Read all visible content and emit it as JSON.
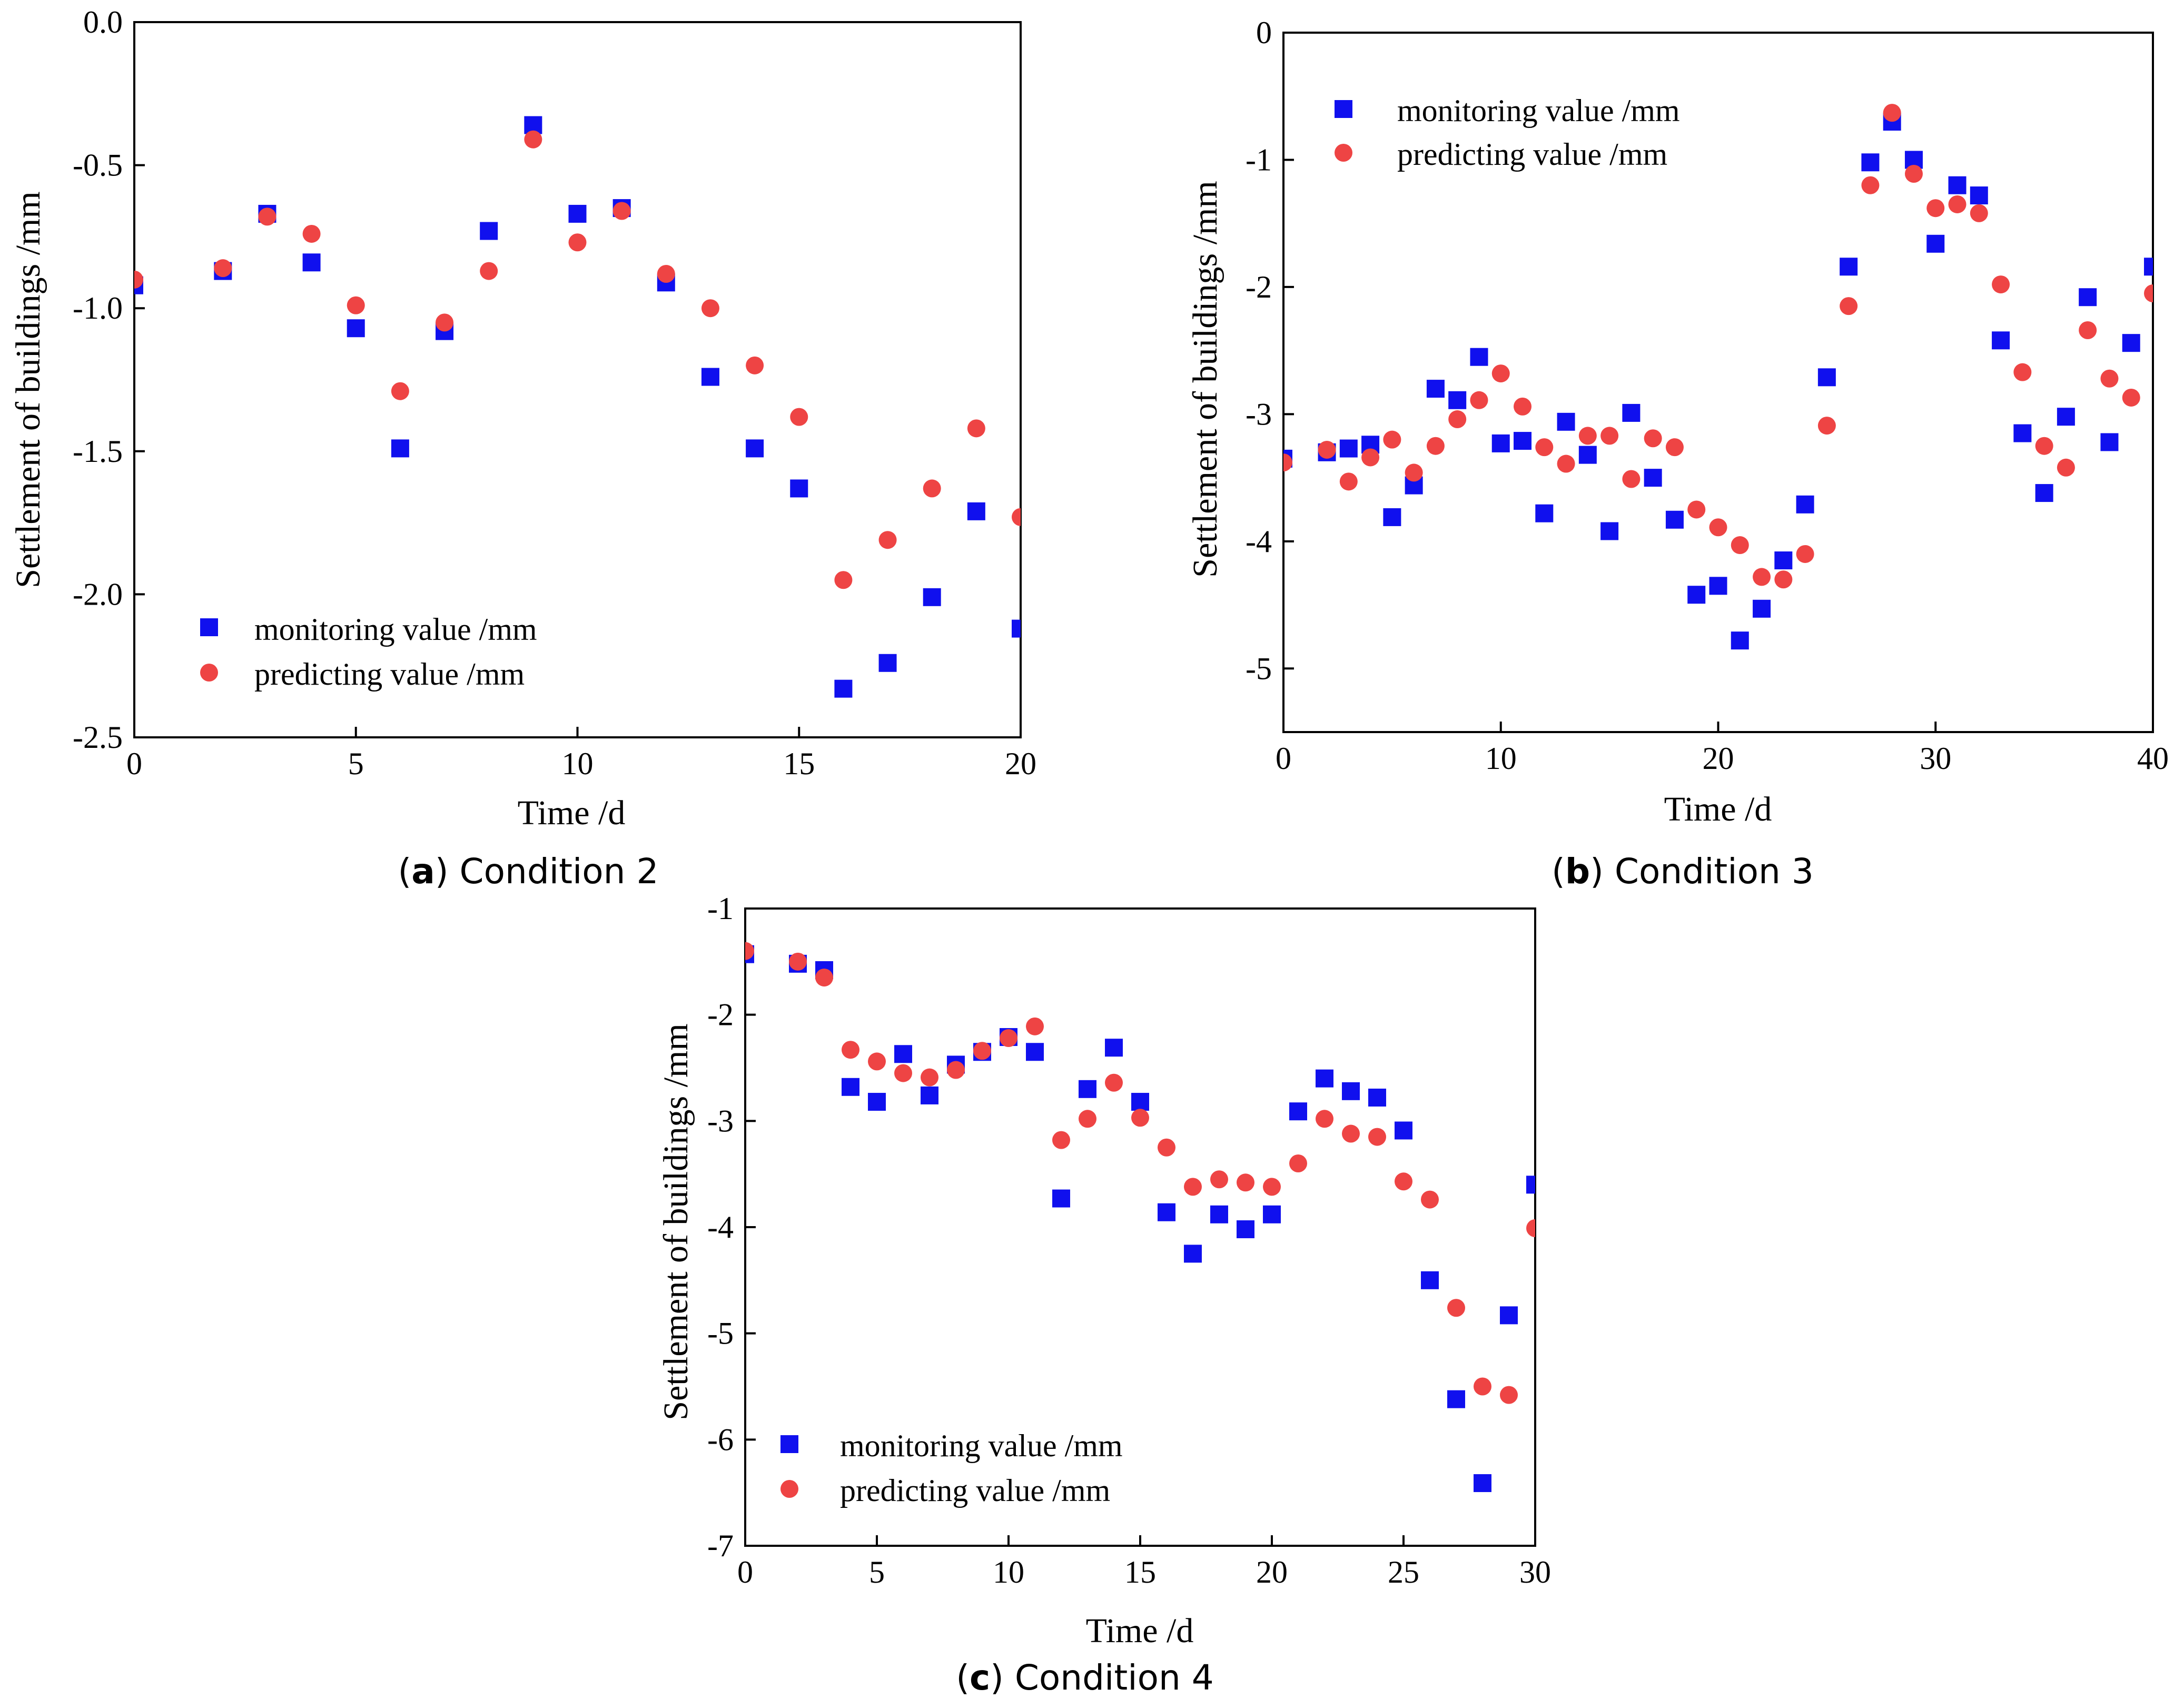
{
  "colors": {
    "monitoring": "#1010ee",
    "predicting": "#ee4444",
    "axis": "#000000"
  },
  "chart_data": [
    {
      "id": "a",
      "type": "scatter",
      "caption_letter": "a",
      "caption_text": "Condition 2",
      "xlabel": "Time /d",
      "ylabel": "Settlement of buildings /mm",
      "xlim": [
        0,
        20
      ],
      "ylim": [
        -2.5,
        0.0
      ],
      "xticks": [
        0,
        5,
        10,
        15,
        20
      ],
      "yticks": [
        0.0,
        -0.5,
        -1.0,
        -1.5,
        -2.0,
        -2.5
      ],
      "xtick_labels": [
        "0",
        "5",
        "10",
        "15",
        "20"
      ],
      "ytick_labels": [
        "0.0",
        "-0.5",
        "-1.0",
        "-1.5",
        "-2.0",
        "-2.5"
      ],
      "legend_position": "bottom-left",
      "series": [
        {
          "name": "monitoring value /mm",
          "marker": "square",
          "x": [
            0,
            2,
            3,
            4,
            5,
            6,
            7,
            8,
            9,
            10,
            11,
            12,
            13,
            14,
            15,
            16,
            17,
            18,
            19,
            20
          ],
          "y": [
            -0.92,
            -0.87,
            -0.67,
            -0.84,
            -1.07,
            -1.49,
            -1.08,
            -0.73,
            -0.36,
            -0.67,
            -0.65,
            -0.91,
            -1.24,
            -1.49,
            -1.63,
            -2.33,
            -2.24,
            -2.01,
            -1.71,
            -2.12
          ]
        },
        {
          "name": "predicting value /mm",
          "marker": "circle",
          "x": [
            0,
            2,
            3,
            4,
            5,
            6,
            7,
            8,
            9,
            10,
            11,
            12,
            13,
            14,
            15,
            16,
            17,
            18,
            19,
            20
          ],
          "y": [
            -0.9,
            -0.86,
            -0.68,
            -0.74,
            -0.99,
            -1.29,
            -1.05,
            -0.87,
            -0.41,
            -0.77,
            -0.66,
            -0.88,
            -1.0,
            -1.2,
            -1.38,
            -1.95,
            -1.81,
            -1.63,
            -1.42,
            -1.73
          ]
        }
      ]
    },
    {
      "id": "b",
      "type": "scatter",
      "caption_letter": "b",
      "caption_text": "Condition 3",
      "xlabel": "Time /d",
      "ylabel": "Settlement of buildings /mm",
      "xlim": [
        0,
        40
      ],
      "ylim": [
        -5.5,
        0
      ],
      "xticks": [
        0,
        10,
        20,
        30,
        40
      ],
      "yticks": [
        0,
        -1,
        -2,
        -3,
        -4,
        -5
      ],
      "xtick_labels": [
        "0",
        "10",
        "20",
        "30",
        "40"
      ],
      "ytick_labels": [
        "0",
        "-1",
        "-2",
        "-3",
        "-4",
        "-5"
      ],
      "legend_position": "top-left",
      "series": [
        {
          "name": "monitoring value /mm",
          "marker": "square",
          "x": [
            0,
            2,
            3,
            4,
            5,
            6,
            7,
            8,
            9,
            10,
            11,
            12,
            13,
            14,
            15,
            16,
            17,
            18,
            19,
            20,
            21,
            22,
            23,
            24,
            25,
            26,
            27,
            28,
            29,
            30,
            31,
            32,
            33,
            34,
            35,
            36,
            37,
            38,
            39,
            40
          ],
          "y": [
            -3.35,
            -3.3,
            -3.27,
            -3.24,
            -3.81,
            -3.56,
            -2.8,
            -2.89,
            -2.55,
            -3.23,
            -3.21,
            -3.78,
            -3.06,
            -3.32,
            -3.92,
            -2.99,
            -3.5,
            -3.83,
            -4.42,
            -4.35,
            -4.78,
            -4.53,
            -4.15,
            -3.71,
            -2.71,
            -1.84,
            -1.02,
            -0.7,
            -1.0,
            -1.66,
            -1.2,
            -1.28,
            -2.42,
            -3.15,
            -3.62,
            -3.02,
            -2.08,
            -3.22,
            -2.44,
            -1.84
          ]
        },
        {
          "name": "predicting value /mm",
          "marker": "circle",
          "x": [
            0,
            2,
            3,
            4,
            5,
            6,
            7,
            8,
            9,
            10,
            11,
            12,
            13,
            14,
            15,
            16,
            17,
            18,
            19,
            20,
            21,
            22,
            23,
            24,
            25,
            26,
            27,
            28,
            29,
            30,
            31,
            32,
            33,
            34,
            35,
            36,
            37,
            38,
            39,
            40
          ],
          "y": [
            -3.38,
            -3.28,
            -3.53,
            -3.34,
            -3.2,
            -3.46,
            -3.25,
            -3.04,
            -2.89,
            -2.68,
            -2.94,
            -3.26,
            -3.39,
            -3.17,
            -3.17,
            -3.51,
            -3.19,
            -3.26,
            -3.75,
            -3.89,
            -4.03,
            -4.28,
            -4.3,
            -4.1,
            -3.09,
            -2.15,
            -1.2,
            -0.63,
            -1.11,
            -1.38,
            -1.35,
            -1.42,
            -1.98,
            -2.67,
            -3.25,
            -3.42,
            -2.34,
            -2.72,
            -2.87,
            -2.05
          ]
        }
      ]
    },
    {
      "id": "c",
      "type": "scatter",
      "caption_letter": "c",
      "caption_text": "Condition 4",
      "xlabel": "Time /d",
      "ylabel": "Settlement of buildings /mm",
      "xlim": [
        0,
        30
      ],
      "ylim": [
        -7,
        -1
      ],
      "xticks": [
        0,
        5,
        10,
        15,
        20,
        25,
        30
      ],
      "yticks": [
        -1,
        -2,
        -3,
        -4,
        -5,
        -6,
        -7
      ],
      "xtick_labels": [
        "0",
        "5",
        "10",
        "15",
        "20",
        "25",
        "30"
      ],
      "ytick_labels": [
        "-1",
        "-2",
        "-3",
        "-4",
        "-5",
        "-6",
        "-7"
      ],
      "legend_position": "bottom-left",
      "series": [
        {
          "name": "monitoring value /mm",
          "marker": "square",
          "x": [
            0,
            2,
            3,
            4,
            5,
            6,
            7,
            8,
            9,
            10,
            11,
            12,
            13,
            14,
            15,
            16,
            17,
            18,
            19,
            20,
            21,
            22,
            23,
            24,
            25,
            26,
            27,
            28,
            29,
            30
          ],
          "y": [
            -1.43,
            -1.52,
            -1.58,
            -2.68,
            -2.82,
            -2.37,
            -2.76,
            -2.47,
            -2.35,
            -2.21,
            -2.35,
            -3.73,
            -2.7,
            -2.31,
            -2.82,
            -3.86,
            -4.25,
            -3.88,
            -4.02,
            -3.88,
            -2.91,
            -2.6,
            -2.72,
            -2.78,
            -3.09,
            -4.5,
            -5.62,
            -6.41,
            -4.83,
            -3.6
          ]
        },
        {
          "name": "predicting value /mm",
          "marker": "circle",
          "x": [
            0,
            2,
            3,
            4,
            5,
            6,
            7,
            8,
            9,
            10,
            11,
            12,
            13,
            14,
            15,
            16,
            17,
            18,
            19,
            20,
            21,
            22,
            23,
            24,
            25,
            26,
            27,
            28,
            29,
            30
          ],
          "y": [
            -1.4,
            -1.5,
            -1.65,
            -2.33,
            -2.44,
            -2.55,
            -2.59,
            -2.52,
            -2.34,
            -2.22,
            -2.11,
            -3.18,
            -2.98,
            -2.64,
            -2.97,
            -3.25,
            -3.62,
            -3.55,
            -3.58,
            -3.62,
            -3.4,
            -2.98,
            -3.12,
            -3.15,
            -3.57,
            -3.74,
            -4.76,
            -5.5,
            -5.58,
            -4.01
          ]
        }
      ]
    }
  ]
}
